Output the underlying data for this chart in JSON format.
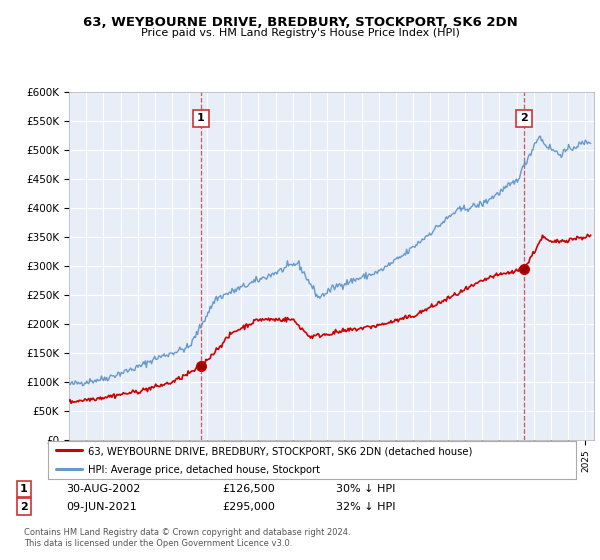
{
  "title": "63, WEYBOURNE DRIVE, BREDBURY, STOCKPORT, SK6 2DN",
  "subtitle": "Price paid vs. HM Land Registry's House Price Index (HPI)",
  "ylim": [
    0,
    600000
  ],
  "yticks": [
    0,
    50000,
    100000,
    150000,
    200000,
    250000,
    300000,
    350000,
    400000,
    450000,
    500000,
    550000,
    600000
  ],
  "ytick_labels": [
    "£0",
    "£50K",
    "£100K",
    "£150K",
    "£200K",
    "£250K",
    "£300K",
    "£350K",
    "£400K",
    "£450K",
    "£500K",
    "£550K",
    "£600K"
  ],
  "xlim_start": 1995.0,
  "xlim_end": 2025.5,
  "sale1_year": 2002.67,
  "sale1_price": 126500,
  "sale2_year": 2021.44,
  "sale2_price": 295000,
  "sale1_date": "30-AUG-2002",
  "sale1_price_str": "£126,500",
  "sale1_hpi": "30% ↓ HPI",
  "sale2_date": "09-JUN-2021",
  "sale2_price_str": "£295,000",
  "sale2_hpi": "32% ↓ HPI",
  "line_color_red": "#cc0000",
  "line_color_blue": "#6699cc",
  "plot_bg_color": "#e8eef8",
  "grid_color": "#ffffff",
  "background_color": "#ffffff",
  "legend_line1": "63, WEYBOURNE DRIVE, BREDBURY, STOCKPORT, SK6 2DN (detached house)",
  "legend_line2": "HPI: Average price, detached house, Stockport",
  "footer1": "Contains HM Land Registry data © Crown copyright and database right 2024.",
  "footer2": "This data is licensed under the Open Government Licence v3.0."
}
